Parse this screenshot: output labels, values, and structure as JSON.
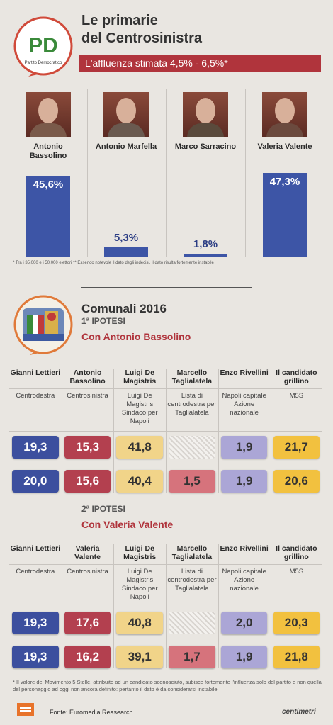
{
  "header": {
    "title": [
      "Le primarie",
      "del Centrosinistra"
    ],
    "logo_letters": "PD",
    "logo": "Partito Democratico",
    "banner": "L'affluenza stimata 4,5% - 6,5%*"
  },
  "chart_data": {
    "type": "bar",
    "categories": [
      "Antonio Bassolino",
      "Antonio Marfella",
      "Marco Sarracino",
      "Valeria Valente"
    ],
    "values": [
      45.6,
      5.3,
      1.8,
      47.3
    ],
    "value_labels": [
      "45,6%",
      "5,3%",
      "1,8%",
      "47,3%"
    ],
    "color": "#3d55a6"
  },
  "footnote_1": "* Tra i 35.000 e i 50.000 elettori ** Essendo notevole il dato degli indecisi, il dato risulta fortemente instabile",
  "section": {
    "title": "Comunali 2016"
  },
  "scenarios": [
    {
      "label": "1ª IPOTESI",
      "subtitle": "Con Antonio Bassolino",
      "columns": [
        "Gianni Lettieri",
        "Antonio Bassolino",
        "Luigi De Magistris",
        "Marcello Taglialatela",
        "Enzo Rivellini",
        "Il candidato grillino"
      ],
      "lists": [
        "Centrodestra",
        "Centrosinistra",
        "Luigi De Magistris Sindaco per Napoli",
        "Lista di centrodestra per Taglialatela",
        "Napoli capitale Azione nazionale",
        "M5S"
      ],
      "rows": [
        [
          "19,3",
          "15,3",
          "41,8",
          null,
          "1,9",
          "21,7"
        ],
        [
          "20,0",
          "15,6",
          "40,4",
          "1,5",
          "1,9",
          "20,6"
        ]
      ]
    },
    {
      "label": "2ª IPOTESI",
      "subtitle": "Con Valeria Valente",
      "columns": [
        "Gianni Lettieri",
        "Valeria Valente",
        "Luigi De Magistris",
        "Marcello Taglialatela",
        "Enzo Rivellini",
        "Il candidato grillino"
      ],
      "lists": [
        "Centrodestra",
        "Centrosinistra",
        "Luigi De Magistris Sindaco per Napoli",
        "Lista di centrodestra per Taglialatela",
        "Napoli capitale Azione nazionale",
        "M5S"
      ],
      "rows": [
        [
          "19,3",
          "17,6",
          "40,8",
          null,
          "2,0",
          "20,3"
        ],
        [
          "19,3",
          "16,2",
          "39,1",
          "1,7",
          "1,9",
          "21,8"
        ]
      ]
    }
  ],
  "footnote_2": "* Il valore del Movimento 5 Stelle, attribuito ad un candidato sconosciuto, subisce fortemente l'influenza solo del partito e non quella del personaggio ad oggi non ancora definito: pertanto il dato è da considerarsi instabile",
  "source": "Fonte: Euromedia Reasearch",
  "brand": "centimetri"
}
